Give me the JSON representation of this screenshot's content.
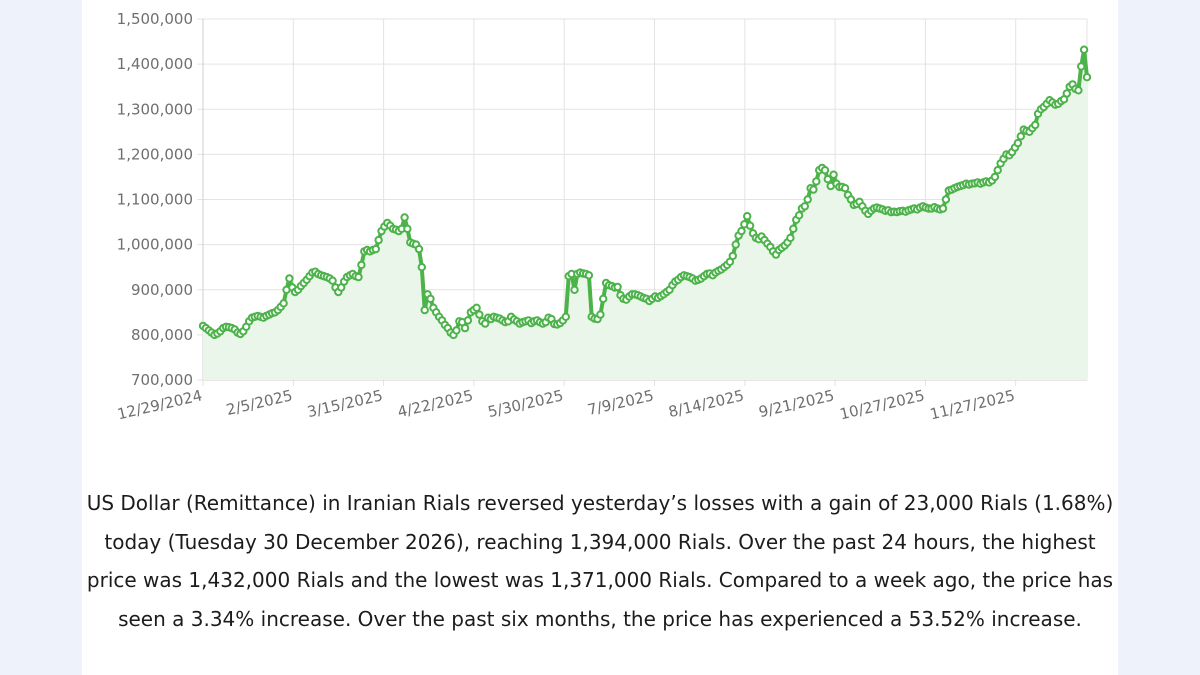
{
  "chart_data": {
    "type": "area",
    "title": "",
    "xlabel": "",
    "ylabel": "",
    "ylim": [
      700000,
      1500000
    ],
    "y_ticks": [
      700000,
      800000,
      900000,
      1000000,
      1100000,
      1200000,
      1300000,
      1400000,
      1500000
    ],
    "y_tick_labels": [
      "700,000",
      "800,000",
      "900,000",
      "1,000,000",
      "1,100,000",
      "1,200,000",
      "1,300,000",
      "1,400,000",
      "1,500,000"
    ],
    "x_tick_labels": [
      "12/29/2024",
      "2/5/2025",
      "3/15/2025",
      "4/22/2025",
      "5/30/2025",
      "7/9/2025",
      "8/14/2025",
      "9/21/2025",
      "10/27/2025",
      "11/27/2025"
    ],
    "grid": true,
    "line_color": "#4cb24a",
    "fill_color": "#eaf6e9",
    "series": [
      {
        "values": [
          820000,
          815000,
          810000,
          805000,
          800000,
          803000,
          808000,
          815000,
          818000,
          817000,
          815000,
          812000,
          805000,
          802000,
          808000,
          818000,
          830000,
          838000,
          840000,
          842000,
          840000,
          838000,
          842000,
          845000,
          848000,
          850000,
          855000,
          862000,
          870000,
          900000,
          925000,
          905000,
          895000,
          900000,
          908000,
          915000,
          922000,
          930000,
          938000,
          940000,
          935000,
          932000,
          930000,
          928000,
          925000,
          920000,
          905000,
          895000,
          905000,
          918000,
          928000,
          932000,
          935000,
          930000,
          928000,
          955000,
          985000,
          988000,
          985000,
          988000,
          990000,
          1010000,
          1030000,
          1040000,
          1048000,
          1042000,
          1035000,
          1033000,
          1030000,
          1035000,
          1060000,
          1035000,
          1005000,
          1002000,
          1000000,
          990000,
          950000,
          855000,
          890000,
          880000,
          860000,
          850000,
          840000,
          832000,
          822000,
          815000,
          805000,
          800000,
          810000,
          830000,
          828000,
          815000,
          832000,
          850000,
          855000,
          860000,
          845000,
          830000,
          825000,
          838000,
          835000,
          840000,
          838000,
          836000,
          832000,
          828000,
          830000,
          840000,
          834000,
          830000,
          825000,
          828000,
          830000,
          832000,
          826000,
          830000,
          832000,
          828000,
          825000,
          828000,
          838000,
          835000,
          824000,
          823000,
          826000,
          832000,
          840000,
          930000,
          935000,
          900000,
          935000,
          938000,
          936000,
          935000,
          932000,
          840000,
          836000,
          835000,
          845000,
          880000,
          915000,
          910000,
          908000,
          905000,
          906000,
          888000,
          880000,
          878000,
          885000,
          890000,
          890000,
          888000,
          885000,
          882000,
          880000,
          875000,
          880000,
          885000,
          882000,
          886000,
          890000,
          895000,
          900000,
          910000,
          918000,
          922000,
          928000,
          932000,
          930000,
          928000,
          925000,
          920000,
          922000,
          925000,
          930000,
          935000,
          936000,
          932000,
          938000,
          942000,
          945000,
          950000,
          955000,
          962000,
          975000,
          1000000,
          1020000,
          1030000,
          1045000,
          1063000,
          1042000,
          1025000,
          1015000,
          1012000,
          1018000,
          1010000,
          1002000,
          995000,
          985000,
          978000,
          988000,
          993000,
          998000,
          1005000,
          1015000,
          1035000,
          1055000,
          1065000,
          1080000,
          1085000,
          1100000,
          1125000,
          1122000,
          1140000,
          1165000,
          1170000,
          1165000,
          1145000,
          1130000,
          1155000,
          1135000,
          1128000,
          1128000,
          1125000,
          1110000,
          1100000,
          1088000,
          1090000,
          1095000,
          1085000,
          1075000,
          1068000,
          1075000,
          1080000,
          1082000,
          1080000,
          1078000,
          1075000,
          1076000,
          1072000,
          1073000,
          1072000,
          1074000,
          1075000,
          1073000,
          1076000,
          1078000,
          1080000,
          1078000,
          1082000,
          1085000,
          1082000,
          1080000,
          1080000,
          1083000,
          1080000,
          1078000,
          1080000,
          1100000,
          1120000,
          1122000,
          1125000,
          1128000,
          1130000,
          1132000,
          1135000,
          1133000,
          1135000,
          1136000,
          1138000,
          1135000,
          1138000,
          1140000,
          1138000,
          1142000,
          1150000,
          1165000,
          1180000,
          1190000,
          1200000,
          1198000,
          1205000,
          1215000,
          1225000,
          1240000,
          1255000,
          1252000,
          1250000,
          1258000,
          1265000,
          1290000,
          1300000,
          1305000,
          1312000,
          1320000,
          1315000,
          1310000,
          1312000,
          1318000,
          1322000,
          1335000,
          1350000,
          1355000,
          1345000,
          1342000,
          1395000,
          1432000,
          1371000
        ]
      }
    ]
  },
  "description": "US Dollar (Remittance) in Iranian Rials reversed yesterday’s losses with a gain of 23,000 Rials (1.68%) today (Tuesday 30 December 2026), reaching 1,394,000 Rials. Over the past 24 hours, the highest price was 1,432,000 Rials and the lowest was 1,371,000 Rials. Compared to a week ago, the price has seen a 3.34% increase. Over the past six months, the price has experienced a 53.52% increase."
}
